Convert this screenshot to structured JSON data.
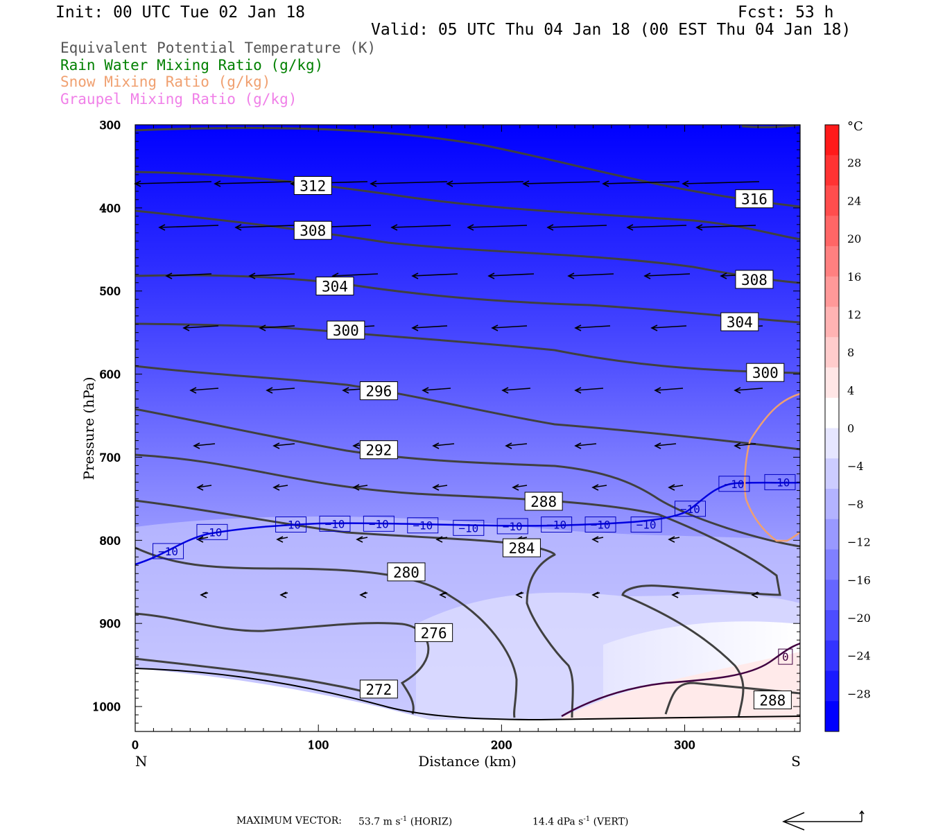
{
  "header": {
    "init": "Init: 00 UTC Tue 02 Jan 18",
    "fcst": "Fcst:   53 h",
    "valid": "Valid: 05 UTC Thu 04 Jan 18 (00 EST Thu 04 Jan 18)"
  },
  "legend": [
    {
      "text": "Equivalent Potential Temperature (K)",
      "color": "#555555"
    },
    {
      "text": "Rain Water Mixing Ratio (g/kg)",
      "color": "#008000"
    },
    {
      "text": "Snow Mixing Ratio (g/kg)",
      "color": "#f0a070"
    },
    {
      "text": "Graupel Mixing Ratio (g/kg)",
      "color": "#f080e8"
    }
  ],
  "footer": {
    "label": "MAXIMUM VECTOR:",
    "horiz": "53.7 m s",
    "horiz_sup": "-1",
    "horiz_tag": "(HORIZ)",
    "vert": "14.4 dPa s",
    "vert_sup": "-1",
    "vert_tag": "(VERT)"
  },
  "chart_data": {
    "type": "heatmap",
    "title": "",
    "xlabel": "Distance (km)",
    "ylabel": "Pressure (hPa)",
    "xlim": [
      0,
      363
    ],
    "ylim": [
      1030,
      300
    ],
    "xticks": [
      0,
      100,
      200,
      300
    ],
    "yticks": [
      300,
      400,
      500,
      600,
      700,
      800,
      900,
      1000
    ],
    "x_end_labels": {
      "left": "N",
      "right": "S"
    },
    "colorbar": {
      "unit": "°C",
      "tick_labels": [
        "28",
        "24",
        "20",
        "16",
        "12",
        "8",
        "4",
        "0",
        "−4",
        "−8",
        "−12",
        "−16",
        "−20",
        "−24",
        "−28"
      ],
      "colors": [
        "#ff1a1a",
        "#ff3333",
        "#ff4d4d",
        "#ff6666",
        "#ff8080",
        "#ff9999",
        "#ffb3b3",
        "#ffcccc",
        "#ffe6e6",
        "#ffffff",
        "#e6e6ff",
        "#ccccff",
        "#b3b3ff",
        "#9999ff",
        "#8080ff",
        "#6666ff",
        "#4d4dff",
        "#3333ff",
        "#1a1aff",
        "#0000ff"
      ]
    },
    "theta_e_labels": [
      {
        "value": "312",
        "x": 97,
        "p": 373
      },
      {
        "value": "316",
        "x": 338,
        "p": 389
      },
      {
        "value": "308",
        "x": 97,
        "p": 427
      },
      {
        "value": "304",
        "x": 109,
        "p": 494
      },
      {
        "value": "308",
        "x": 338,
        "p": 486
      },
      {
        "value": "300",
        "x": 115,
        "p": 547
      },
      {
        "value": "304",
        "x": 330,
        "p": 537
      },
      {
        "value": "300",
        "x": 344,
        "p": 598
      },
      {
        "value": "296",
        "x": 133,
        "p": 620
      },
      {
        "value": "292",
        "x": 133,
        "p": 691
      },
      {
        "value": "288",
        "x": 223,
        "p": 753
      },
      {
        "value": "284",
        "x": 211,
        "p": 809
      },
      {
        "value": "280",
        "x": 148,
        "p": 838
      },
      {
        "value": "276",
        "x": 163,
        "p": 911
      },
      {
        "value": "272",
        "x": 133,
        "p": 979
      },
      {
        "value": "288",
        "x": 348,
        "p": 992
      }
    ],
    "temperature_labels": [
      {
        "value": "−10",
        "x": 18,
        "p": 813
      },
      {
        "value": "−10",
        "x": 42,
        "p": 790
      },
      {
        "value": "−10",
        "x": 85,
        "p": 781
      },
      {
        "value": "−10",
        "x": 109,
        "p": 780
      },
      {
        "value": "−10",
        "x": 133,
        "p": 780
      },
      {
        "value": "−10",
        "x": 157,
        "p": 782
      },
      {
        "value": "−10",
        "x": 182,
        "p": 785
      },
      {
        "value": "−10",
        "x": 206,
        "p": 783
      },
      {
        "value": "−10",
        "x": 230,
        "p": 781
      },
      {
        "value": "−10",
        "x": 254,
        "p": 781
      },
      {
        "value": "−10",
        "x": 279,
        "p": 781
      },
      {
        "value": "−10",
        "x": 303,
        "p": 762
      },
      {
        "value": "−10",
        "x": 327,
        "p": 732
      },
      {
        "value": "−10",
        "x": 352,
        "p": 730
      },
      {
        "value": "0",
        "x": 355,
        "p": 940
      }
    ]
  }
}
